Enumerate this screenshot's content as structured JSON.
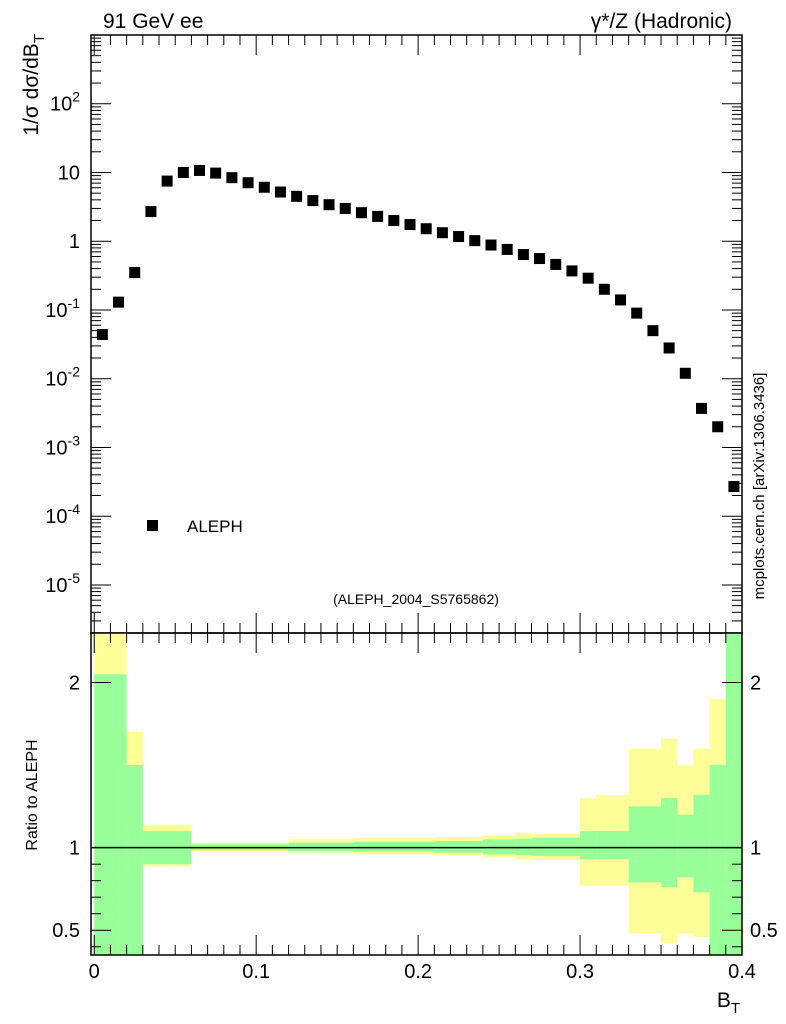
{
  "header": {
    "left": "91 GeV ee",
    "right": "γ*/Z (Hadronic)"
  },
  "watermark": "mcplots.cern.ch [arXiv:1306.3436]",
  "analysis_label": "(ALEPH_2004_S5765862)",
  "colors": {
    "marker": "#000000",
    "band_inner": "#99ff99",
    "band_outer": "#ffff99",
    "analysis_label": "#999999",
    "watermark": "#999999"
  },
  "chart_data": [
    {
      "type": "scatter",
      "panel": "main",
      "ylabel": "1/σ dσ/dB_T",
      "yscale": "log",
      "ylim": [
        2e-06,
        1000
      ],
      "xlim": [
        -0.002,
        0.4
      ],
      "ytick_labels": [
        "10^-5",
        "10^-4",
        "10^-3",
        "10^-2",
        "10^-1",
        "1",
        "10",
        "10^2"
      ],
      "legend": {
        "position": "bottom-left",
        "entries": [
          "ALEPH"
        ]
      },
      "series": [
        {
          "name": "ALEPH",
          "marker": "square",
          "x": [
            0.005,
            0.015,
            0.025,
            0.035,
            0.045,
            0.055,
            0.065,
            0.075,
            0.085,
            0.095,
            0.105,
            0.115,
            0.125,
            0.135,
            0.145,
            0.155,
            0.165,
            0.175,
            0.185,
            0.195,
            0.205,
            0.215,
            0.225,
            0.235,
            0.245,
            0.255,
            0.265,
            0.275,
            0.285,
            0.295,
            0.305,
            0.315,
            0.325,
            0.335,
            0.345,
            0.355,
            0.365,
            0.375,
            0.385,
            0.395
          ],
          "y": [
            0.044,
            0.13,
            0.35,
            2.7,
            7.5,
            10.0,
            10.7,
            9.8,
            8.4,
            7.1,
            6.1,
            5.2,
            4.5,
            3.9,
            3.4,
            3.0,
            2.6,
            2.3,
            2.0,
            1.75,
            1.52,
            1.33,
            1.17,
            1.02,
            0.88,
            0.76,
            0.64,
            0.56,
            0.46,
            0.37,
            0.29,
            0.2,
            0.14,
            0.09,
            0.05,
            0.028,
            0.012,
            0.0037,
            0.002,
            0.00027
          ]
        }
      ]
    },
    {
      "type": "area",
      "panel": "ratio",
      "ylabel": "Ratio to ALEPH",
      "xlabel": "B_T",
      "xlim": [
        -0.002,
        0.4
      ],
      "ylim": [
        0.35,
        2.3
      ],
      "xtick_labels": [
        "0",
        "0.1",
        "0.2",
        "0.3",
        "0.4"
      ],
      "ytick_labels": [
        "0.5",
        "1",
        "2"
      ],
      "reference_line": 1,
      "bins": [
        {
          "x0": 0.0,
          "x1": 0.02,
          "inner": [
            0.35,
            2.05
          ],
          "outer": [
            0.35,
            2.3
          ]
        },
        {
          "x0": 0.02,
          "x1": 0.03,
          "inner": [
            0.35,
            1.5
          ],
          "outer": [
            0.35,
            1.7
          ]
        },
        {
          "x0": 0.03,
          "x1": 0.06,
          "inner": [
            0.9,
            1.1
          ],
          "outer": [
            0.885,
            1.14
          ]
        },
        {
          "x0": 0.06,
          "x1": 0.12,
          "inner": [
            0.985,
            1.02
          ],
          "outer": [
            0.98,
            1.03
          ]
        },
        {
          "x0": 0.12,
          "x1": 0.16,
          "inner": [
            0.98,
            1.03
          ],
          "outer": [
            0.97,
            1.05
          ]
        },
        {
          "x0": 0.16,
          "x1": 0.21,
          "inner": [
            0.975,
            1.035
          ],
          "outer": [
            0.96,
            1.06
          ]
        },
        {
          "x0": 0.21,
          "x1": 0.24,
          "inner": [
            0.97,
            1.04
          ],
          "outer": [
            0.955,
            1.065
          ]
        },
        {
          "x0": 0.24,
          "x1": 0.26,
          "inner": [
            0.96,
            1.05
          ],
          "outer": [
            0.94,
            1.075
          ]
        },
        {
          "x0": 0.26,
          "x1": 0.27,
          "inner": [
            0.955,
            1.055
          ],
          "outer": [
            0.93,
            1.09
          ]
        },
        {
          "x0": 0.27,
          "x1": 0.3,
          "inner": [
            0.95,
            1.06
          ],
          "outer": [
            0.925,
            1.085
          ]
        },
        {
          "x0": 0.3,
          "x1": 0.31,
          "inner": [
            0.93,
            1.1
          ],
          "outer": [
            0.77,
            1.3
          ]
        },
        {
          "x0": 0.31,
          "x1": 0.33,
          "inner": [
            0.93,
            1.1
          ],
          "outer": [
            0.77,
            1.32
          ]
        },
        {
          "x0": 0.33,
          "x1": 0.35,
          "inner": [
            0.79,
            1.25
          ],
          "outer": [
            0.48,
            1.6
          ]
        },
        {
          "x0": 0.35,
          "x1": 0.36,
          "inner": [
            0.76,
            1.3
          ],
          "outer": [
            0.42,
            1.66
          ]
        },
        {
          "x0": 0.36,
          "x1": 0.37,
          "inner": [
            0.82,
            1.2
          ],
          "outer": [
            0.48,
            1.5
          ]
        },
        {
          "x0": 0.37,
          "x1": 0.38,
          "inner": [
            0.73,
            1.32
          ],
          "outer": [
            0.46,
            1.6
          ]
        },
        {
          "x0": 0.38,
          "x1": 0.39,
          "inner": [
            0.35,
            1.5
          ],
          "outer": [
            0.35,
            1.9
          ]
        },
        {
          "x0": 0.39,
          "x1": 0.4,
          "inner": [
            0.35,
            2.3
          ],
          "outer": [
            0.35,
            2.3
          ]
        }
      ]
    }
  ]
}
